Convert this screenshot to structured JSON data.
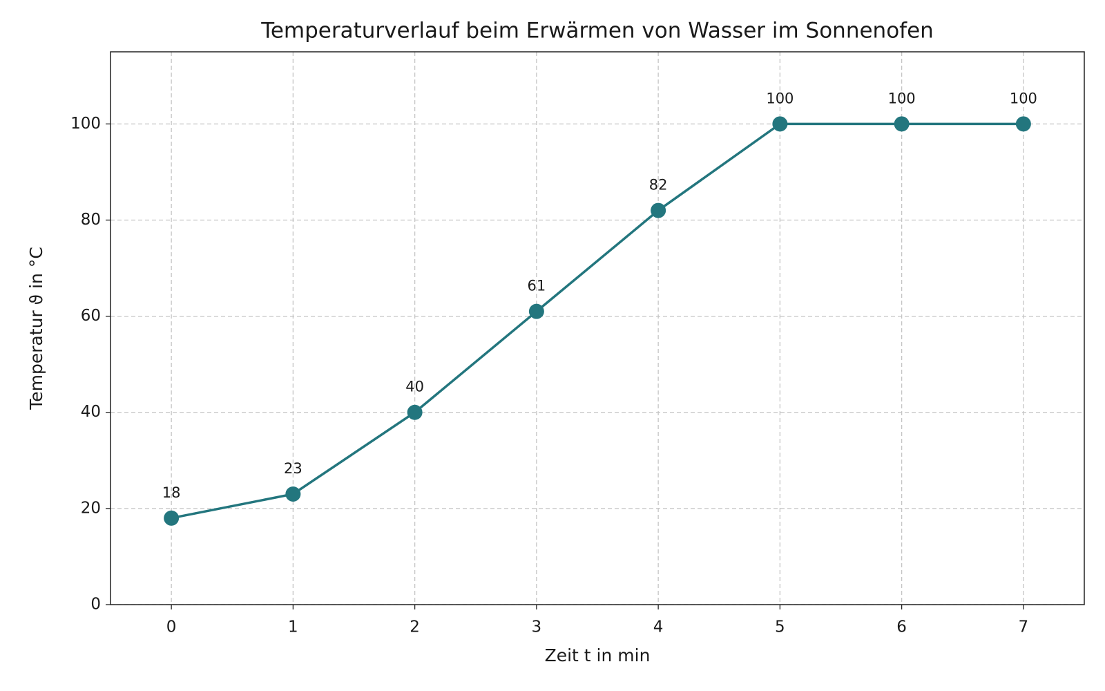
{
  "chart_data": {
    "type": "line",
    "title": "Temperaturverlauf beim Erwärmen von Wasser im Sonnenofen",
    "xlabel": "Zeit t in min",
    "ylabel": "Temperatur ϑ in °C",
    "x": [
      0,
      1,
      2,
      3,
      4,
      5,
      6,
      7
    ],
    "series": [
      {
        "name": "Temperatur",
        "color": "#23767e",
        "values": [
          18,
          23,
          40,
          61,
          82,
          100,
          100,
          100
        ]
      }
    ],
    "xlim": [
      -0.5,
      7.5
    ],
    "xticks": [
      0,
      1,
      2,
      3,
      4,
      5,
      6,
      7
    ],
    "ylim": [
      0,
      115
    ],
    "yticks": [
      0,
      20,
      40,
      60,
      80,
      100
    ],
    "grid": true
  }
}
